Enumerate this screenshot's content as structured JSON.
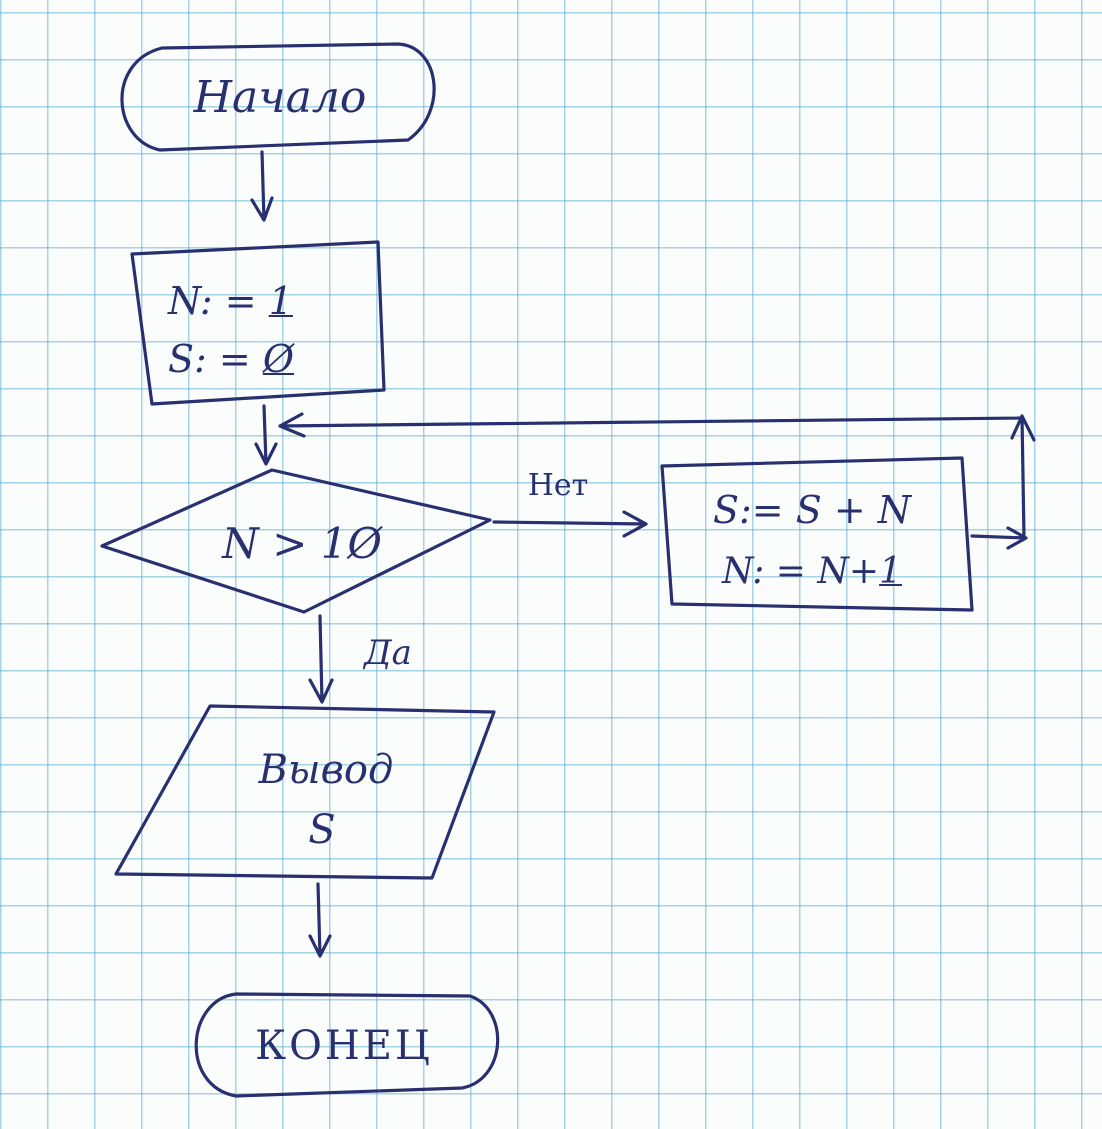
{
  "start": {
    "label": "Начало"
  },
  "init": {
    "line1": {
      "var": "N: =",
      "value": "1"
    },
    "line2": {
      "var": "S: =",
      "value": "Ø"
    }
  },
  "decision": {
    "condition": "N > 1Ø"
  },
  "branches": {
    "no": "Нет",
    "yes": "Да"
  },
  "body": {
    "line1": "S:= S + N",
    "line2": {
      "expr": "N: = N+",
      "value": "1"
    }
  },
  "output": {
    "line1": "Вывод",
    "line2": "S"
  },
  "end": {
    "label": "КОНЕЦ"
  }
}
